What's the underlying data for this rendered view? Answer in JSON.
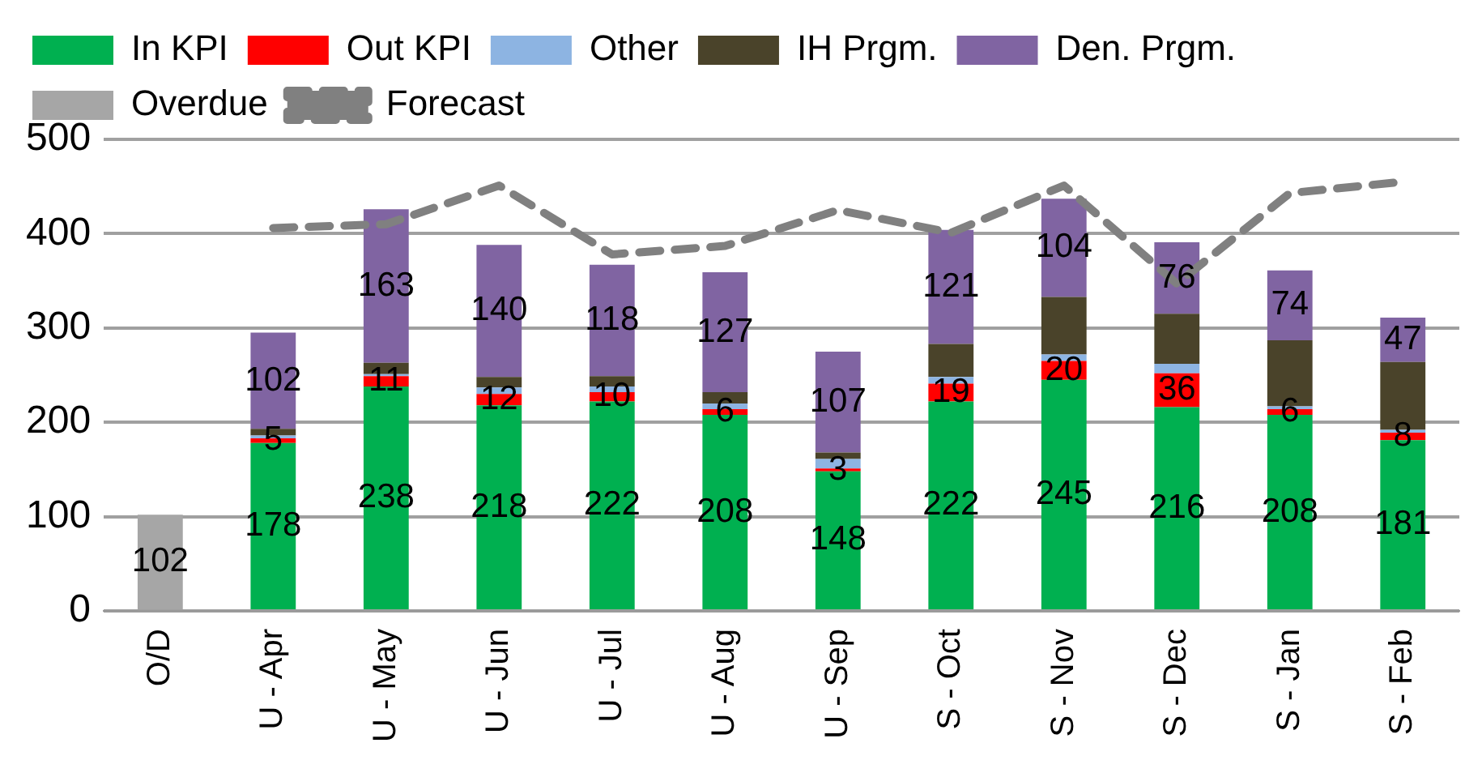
{
  "chart_data": {
    "type": "bar",
    "stacked": true,
    "categories": [
      "O/D",
      "U - Apr",
      "U - May",
      "U - Jun",
      "U - Jul",
      "U - Aug",
      "U - Sep",
      "S - Oct",
      "S - Nov",
      "S - Dec",
      "S - Jan",
      "S - Feb"
    ],
    "ylim": [
      0,
      500
    ],
    "yticks": [
      0,
      100,
      200,
      300,
      400,
      500
    ],
    "grid": "y",
    "legend": "top",
    "series": [
      {
        "name": "In KPI",
        "color": "#00b050",
        "values": [
          null,
          178,
          238,
          218,
          222,
          208,
          148,
          222,
          245,
          216,
          208,
          181
        ],
        "value_labels": [
          null,
          "178",
          "238",
          "218",
          "222",
          "208",
          "148",
          "222",
          "245",
          "216",
          "208",
          "181"
        ]
      },
      {
        "name": "Out KPI",
        "color": "#ff0000",
        "values": [
          null,
          5,
          11,
          12,
          10,
          6,
          3,
          19,
          20,
          36,
          6,
          8
        ],
        "value_labels": [
          null,
          "5",
          "11",
          "12",
          "10",
          "6",
          "3",
          "19",
          "20",
          "36",
          "6",
          "8"
        ]
      },
      {
        "name": "Other",
        "color": "#8db4e2",
        "values": [
          null,
          3,
          2,
          7,
          6,
          6,
          10,
          7,
          7,
          10,
          3,
          3
        ]
      },
      {
        "name": "IH Prgm.",
        "color": "#4a432a",
        "values": [
          null,
          7,
          12,
          11,
          11,
          12,
          7,
          35,
          61,
          53,
          70,
          72
        ]
      },
      {
        "name": "Den. Prgm.",
        "color": "#8064a2",
        "values": [
          null,
          102,
          163,
          140,
          118,
          127,
          107,
          121,
          104,
          76,
          74,
          47
        ],
        "value_labels": [
          null,
          "102",
          "163",
          "140",
          "118",
          "127",
          "107",
          "121",
          "104",
          "76",
          "74",
          "47"
        ]
      },
      {
        "name": "Overdue",
        "color": "#a6a6a6",
        "values": [
          102,
          null,
          null,
          null,
          null,
          null,
          null,
          null,
          null,
          null,
          null,
          null
        ],
        "value_labels": [
          "102",
          null,
          null,
          null,
          null,
          null,
          null,
          null,
          null,
          null,
          null,
          null
        ]
      },
      {
        "name": "Forecast",
        "type": "line",
        "line_style": "dashed",
        "marker": "none",
        "color": "#808080",
        "values": [
          null,
          406,
          410,
          451,
          378,
          387,
          425,
          401,
          451,
          347,
          443,
          455
        ]
      }
    ]
  }
}
